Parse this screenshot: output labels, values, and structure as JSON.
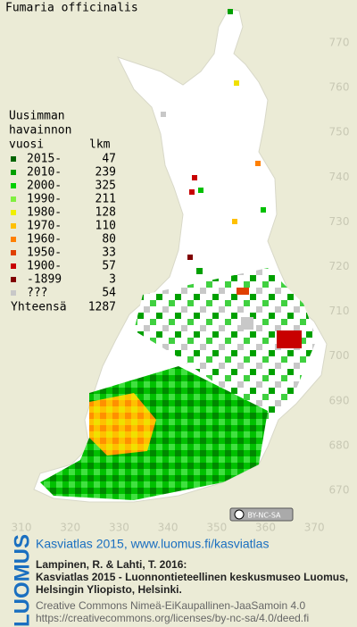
{
  "map": {
    "title": "Fumaria officinalis",
    "yticks": [
      670,
      680,
      690,
      700,
      710,
      720,
      730,
      740,
      750,
      760,
      770
    ],
    "xticks": [
      310,
      320,
      330,
      340,
      350,
      360,
      370
    ],
    "legend": {
      "heading": [
        "Uusimman",
        "havainnon",
        "vuosi"
      ],
      "count_heading": "lkm",
      "items": [
        {
          "label": "2015-",
          "count": 47,
          "color": "#006400"
        },
        {
          "label": "2010-",
          "count": 239,
          "color": "#00a000"
        },
        {
          "label": "2000-",
          "count": 325,
          "color": "#00d000"
        },
        {
          "label": "1990-",
          "count": 211,
          "color": "#80f040"
        },
        {
          "label": "1980-",
          "count": 128,
          "color": "#f0f000"
        },
        {
          "label": "1970-",
          "count": 110,
          "color": "#ffc000"
        },
        {
          "label": "1960-",
          "count": 80,
          "color": "#ff8000"
        },
        {
          "label": "1950-",
          "count": 33,
          "color": "#e04000"
        },
        {
          "label": "1900-",
          "count": 57,
          "color": "#c80000"
        },
        {
          "label": "-1899",
          "count": 3,
          "color": "#800000"
        },
        {
          "label": "???",
          "count": 54,
          "color": "#c8c8c8"
        }
      ],
      "total_label": "Yhteensä",
      "total": 1287
    },
    "license_badge": "BY-NC-SA"
  },
  "footer": {
    "logo": "LUOMUS",
    "heading": "Kasviatlas 2015, www.luomus.fi/kasviatlas",
    "citation": [
      "Lampinen, R. & Lahti, T. 2016:",
      "Kasviatlas 2015 - Luonnontieteellinen keskusmuseo Luomus,",
      "Helsingin Yliopisto, Helsinki."
    ],
    "license": [
      "Creative Commons Nimeä-EiKaupallinen-JaaSamoin 4.0",
      "https://creativecommons.org/licenses/by-nc-sa/4.0/deed.fi"
    ]
  }
}
